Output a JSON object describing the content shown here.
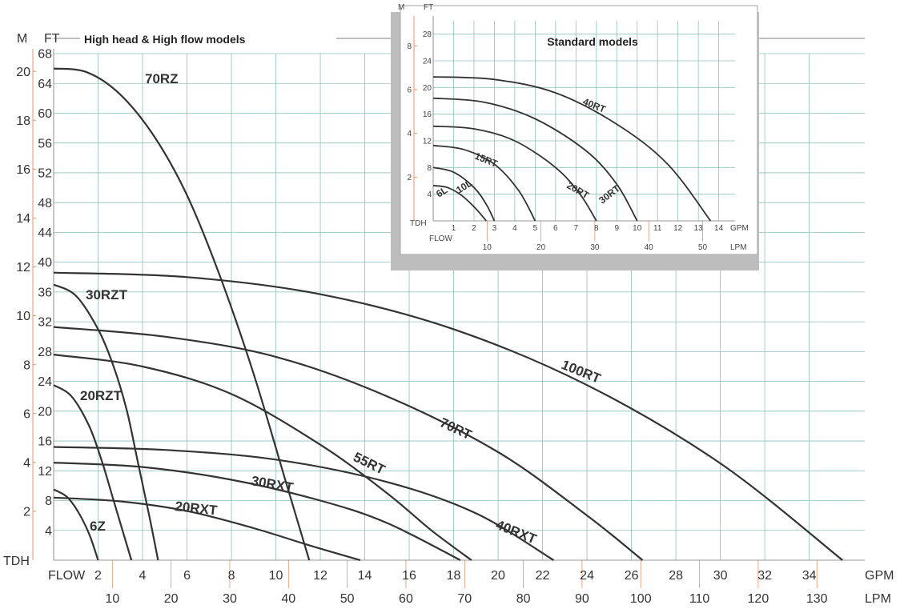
{
  "chart_data": [
    {
      "type": "line",
      "title": "High head & High flow models",
      "corner_labels": {
        "m": "M",
        "ft": "FT",
        "tdh": "TDH",
        "flow": "FLOW",
        "gpm": "GPM",
        "lpm": "LPM"
      },
      "x_gpm_ticks": [
        2,
        4,
        6,
        8,
        10,
        12,
        14,
        16,
        18,
        20,
        22,
        24,
        26,
        28,
        30,
        32,
        34
      ],
      "x_lpm_ticks": [
        10,
        20,
        30,
        40,
        50,
        60,
        70,
        80,
        90,
        100,
        110,
        120,
        130
      ],
      "y_ft_ticks": [
        4,
        8,
        12,
        16,
        20,
        24,
        28,
        32,
        36,
        40,
        44,
        48,
        52,
        56,
        60,
        64,
        68
      ],
      "y_m_ticks": [
        2,
        4,
        6,
        8,
        10,
        12,
        14,
        16,
        18,
        20
      ],
      "xlim_gpm": [
        0,
        36.5
      ],
      "ylim_ft": [
        0,
        68
      ],
      "grid": true,
      "series": [
        {
          "name": "70RZ",
          "x": [
            0,
            1.5,
            3,
            4.5,
            6,
            7.5,
            9,
            10.5,
            11.5
          ],
          "y": [
            66,
            65.5,
            62.5,
            57,
            49,
            38,
            25,
            10,
            0
          ]
        },
        {
          "name": "30RZT",
          "x": [
            0,
            1,
            2,
            2.7,
            3.3,
            3.8,
            4.3,
            4.7
          ],
          "y": [
            37,
            35.5,
            31,
            26,
            20,
            13,
            6,
            0
          ]
        },
        {
          "name": "20RZT",
          "x": [
            0,
            0.8,
            1.6,
            2.2,
            2.7,
            3.1,
            3.5
          ],
          "y": [
            23.5,
            22,
            18,
            13,
            8,
            4,
            0
          ]
        },
        {
          "name": "6Z",
          "x": [
            0,
            0.6,
            1.1,
            1.6,
            2
          ],
          "y": [
            9.5,
            8.5,
            6.5,
            3.5,
            0
          ]
        },
        {
          "name": "20RXT",
          "x": [
            0,
            3,
            6,
            9,
            11.5,
            13.8
          ],
          "y": [
            8.4,
            7.9,
            6.6,
            4.3,
            2,
            0
          ]
        },
        {
          "name": "30RXT",
          "x": [
            0,
            4,
            8,
            12,
            15,
            18.3
          ],
          "y": [
            13.1,
            12.5,
            10.8,
            8,
            5,
            0
          ]
        },
        {
          "name": "40RXT",
          "x": [
            0,
            5,
            10,
            15,
            19,
            22.5
          ],
          "y": [
            15.2,
            14.8,
            13.5,
            10.5,
            6.3,
            0
          ]
        },
        {
          "name": "55RT",
          "x": [
            0,
            4,
            8,
            12,
            15,
            17,
            18.8
          ],
          "y": [
            27.6,
            26,
            22.3,
            15.5,
            9,
            4,
            0
          ]
        },
        {
          "name": "70RT",
          "x": [
            0,
            5,
            10,
            15,
            20,
            24,
            26.5
          ],
          "y": [
            31.3,
            30,
            27.3,
            22,
            14.5,
            6,
            0
          ]
        },
        {
          "name": "100RT",
          "x": [
            0,
            6,
            12,
            18,
            24,
            30,
            35.5
          ],
          "y": [
            38.6,
            38,
            35.7,
            31,
            23.5,
            13,
            0
          ]
        }
      ]
    },
    {
      "type": "line",
      "title": "Standard models",
      "corner_labels": {
        "m": "M",
        "ft": "FT",
        "tdh": "TDH",
        "flow": "FLOW",
        "gpm": "GPM",
        "lpm": "LPM"
      },
      "x_gpm_ticks": [
        1,
        2,
        3,
        4,
        5,
        6,
        7,
        8,
        9,
        10,
        11,
        12,
        13,
        14
      ],
      "x_lpm_ticks": [
        10,
        20,
        30,
        40,
        50
      ],
      "y_ft_ticks": [
        4,
        8,
        12,
        16,
        20,
        24,
        28
      ],
      "y_m_ticks": [
        2,
        4,
        6,
        8
      ],
      "xlim_gpm": [
        0,
        14.8
      ],
      "ylim_ft": [
        0,
        30
      ],
      "grid": true,
      "series": [
        {
          "name": "6L",
          "x": [
            0,
            0.7,
            1.4,
            2.1,
            2.6
          ],
          "y": [
            5.3,
            5,
            3.8,
            1.8,
            0
          ]
        },
        {
          "name": "10L",
          "x": [
            0,
            1,
            2,
            2.6,
            3
          ],
          "y": [
            8,
            7.3,
            5,
            2.5,
            0
          ]
        },
        {
          "name": "15RT",
          "x": [
            0,
            1.5,
            3,
            4.2,
            5
          ],
          "y": [
            11.3,
            10.7,
            8.5,
            4.5,
            0
          ]
        },
        {
          "name": "20RT",
          "x": [
            0,
            2,
            4,
            6,
            7.2,
            8
          ],
          "y": [
            14.2,
            13.8,
            12,
            8,
            4,
            0
          ]
        },
        {
          "name": "30RT",
          "x": [
            0,
            2.5,
            5,
            7.5,
            9,
            10
          ],
          "y": [
            18.4,
            17.8,
            15.3,
            10.5,
            5.5,
            0
          ]
        },
        {
          "name": "40RT",
          "x": [
            0,
            3,
            6,
            9,
            11.5,
            13.6
          ],
          "y": [
            21.6,
            21.2,
            19.2,
            14.5,
            8.5,
            0
          ]
        }
      ]
    }
  ]
}
